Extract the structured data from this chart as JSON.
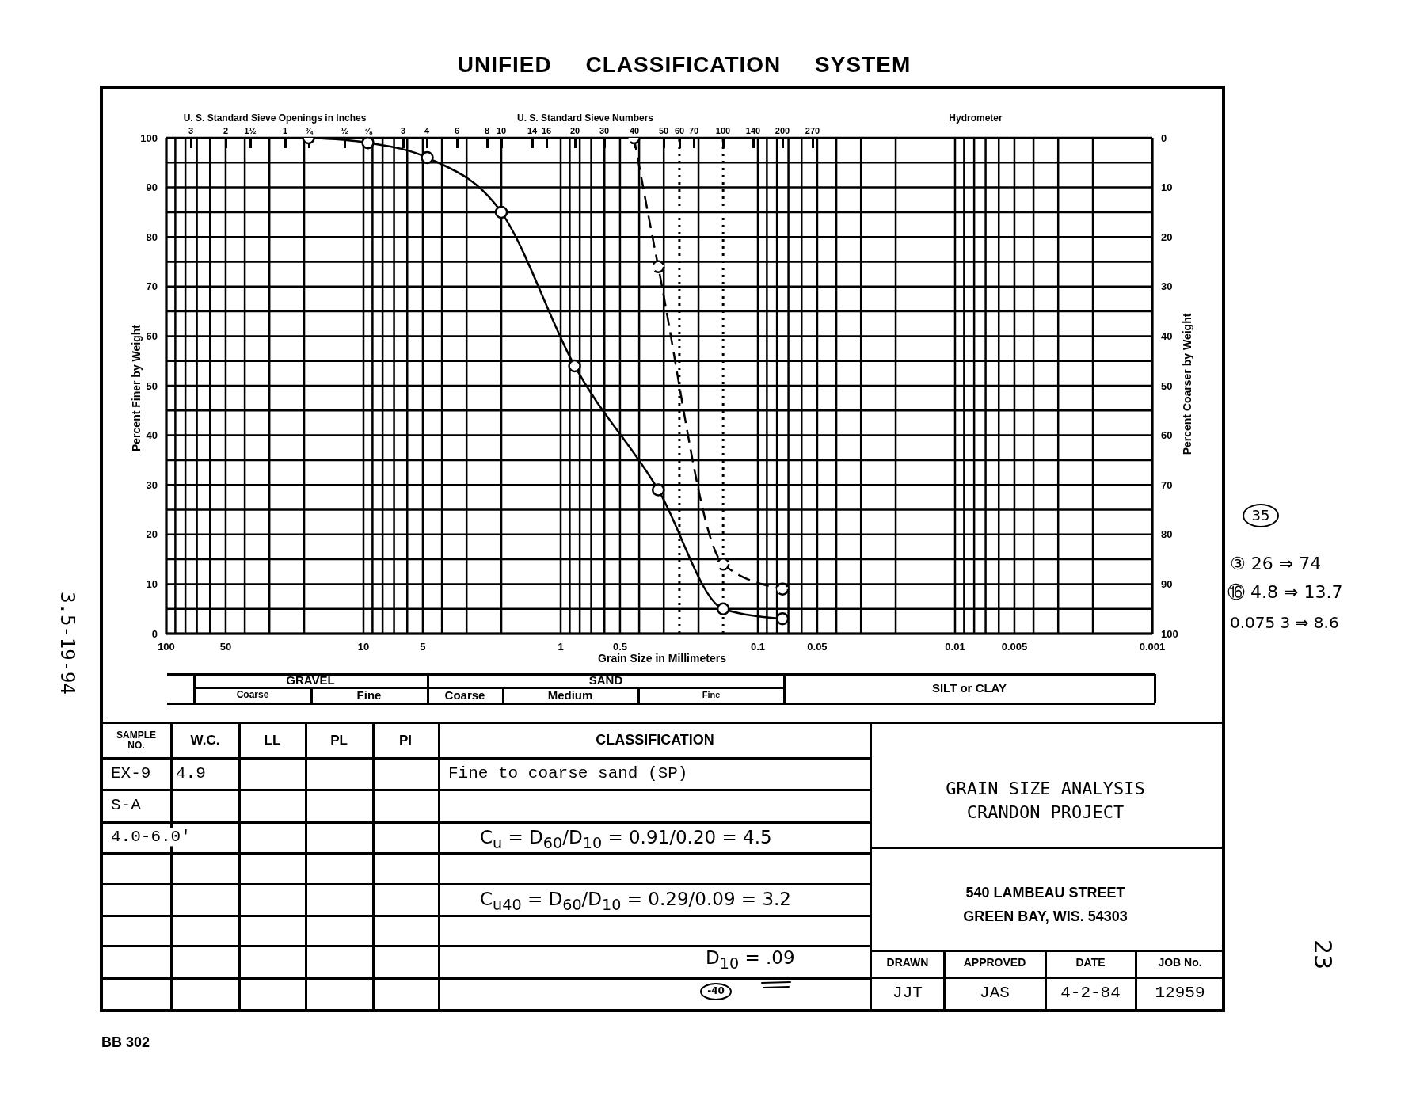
{
  "chart_data": {
    "type": "line",
    "title": "UNIFIED CLASSIFICATION SYSTEM",
    "xlabel": "Grain Size in Millimeters",
    "ylabel": "Percent Finer by Weight",
    "y2label": "Percent Coarser by Weight",
    "log": "x",
    "xlim": [
      100,
      0.001
    ],
    "xticks": [
      100,
      {
        "value": 90,
        "label": null
      },
      {
        "value": 80,
        "label": null
      },
      {
        "value": 70,
        "label": null
      },
      {
        "value": 60,
        "label": null
      },
      50,
      {
        "value": 40,
        "label": null
      },
      {
        "value": 30,
        "label": null
      },
      {
        "value": 20,
        "label": null
      },
      10,
      {
        "value": 9,
        "label": null
      },
      {
        "value": 8,
        "label": null
      },
      {
        "value": 7,
        "label": null
      },
      {
        "value": 6,
        "label": null
      },
      5,
      {
        "value": 4,
        "label": null
      },
      {
        "value": 3,
        "label": null
      },
      {
        "value": 2,
        "label": null
      },
      1,
      {
        "value": 0.9,
        "label": null
      },
      {
        "value": 0.8,
        "label": null
      },
      {
        "value": 0.7,
        "label": null
      },
      {
        "value": 0.6,
        "label": null
      },
      0.5,
      {
        "value": 0.4,
        "label": null
      },
      {
        "value": 0.3,
        "label": null
      },
      {
        "value": 0.2,
        "label": null
      },
      0.1,
      {
        "value": 0.09,
        "label": null
      },
      {
        "value": 0.08,
        "label": null
      },
      {
        "value": 0.07,
        "label": null
      },
      {
        "value": 0.06,
        "label": null
      },
      0.05,
      {
        "value": 0.04,
        "label": null
      },
      {
        "value": 0.03,
        "label": null
      },
      {
        "value": 0.02,
        "label": null
      },
      0.01,
      {
        "value": 0.009,
        "label": null
      },
      {
        "value": 0.008,
        "label": null
      },
      {
        "value": 0.007,
        "label": null
      },
      {
        "value": 0.006,
        "label": null
      },
      0.005,
      {
        "value": 0.004,
        "label": null
      },
      {
        "value": 0.003,
        "label": null
      },
      {
        "value": 0.002,
        "label": null
      },
      0.001
    ],
    "ylim": [
      0,
      100
    ],
    "yticks": [
      0,
      {
        "value": 5,
        "label": null
      },
      10,
      {
        "value": 15,
        "label": null
      },
      20,
      {
        "value": 25,
        "label": null
      },
      30,
      {
        "value": 35,
        "label": null
      },
      40,
      {
        "value": 45,
        "label": null
      },
      50,
      {
        "value": 55,
        "label": null
      },
      60,
      {
        "value": 65,
        "label": null
      },
      70,
      {
        "value": 75,
        "label": null
      },
      80,
      {
        "value": 85,
        "label": null
      },
      90,
      {
        "value": 95,
        "label": null
      },
      100
    ],
    "y2lim": [
      100,
      0
    ],
    "y2ticks": [
      0,
      10,
      20,
      30,
      40,
      50,
      60,
      70,
      80,
      90,
      100
    ],
    "grid": true,
    "marker": "circle",
    "series": [
      {
        "color": "#000000",
        "line_style": "solid",
        "x": [
          19,
          9.5,
          4.75,
          2,
          0.85,
          0.32,
          0.15,
          0.075
        ],
        "values": [
          100,
          99,
          96,
          85,
          54,
          29,
          5,
          3
        ]
      },
      {
        "color": "#000000",
        "line_style": "dashed",
        "x": [
          0.425,
          0.32,
          0.15,
          0.075
        ],
        "values": [
          100,
          74,
          14,
          9
        ]
      }
    ],
    "ref_lines": [
      {
        "axis": "x",
        "value": 0.25,
        "color": "#000000",
        "line_style": "dotted"
      },
      {
        "axis": "x",
        "value": 0.15,
        "color": "#000000",
        "line_style": "dotted"
      }
    ],
    "annotations": [
      "U. S. Standard Sieve Openings in Inches",
      "U. S. Standard Sieve Numbers",
      "Hydrometer",
      "GRAVEL",
      "Coarse",
      "Fine",
      "SAND",
      "Coarse",
      "Medium",
      "Fine",
      "SILT or CLAY",
      "SAMPLE NO.",
      "W.C.",
      "LL",
      "PL",
      "PI",
      "CLASSIFICATION",
      "EX-9",
      "4.9",
      "Fine to coarse sand (SP)",
      "S-A",
      "4.0-6.0'",
      "C$_{u}$ = D$_{60}$/D$_{10}$ = 0.91/0.20 = 4.5",
      "C$_{u40}$ = D$_{60}$/D$_{10}$ = 0.29/0.09 = 3.2",
      "D$_{10}$ = .09",
      "-40",
      "GRAIN SIZE ANALYSIS",
      "CRANDON PROJECT",
      "540 LAMBEAU STREET",
      "GREEN BAY, WIS. 54303",
      "DRAWN",
      "APPROVED",
      "DATE",
      "JOB No.",
      "JJT",
      "JAS",
      "4-2-84",
      "12959",
      "35",
      "③ 26 ⇒ 74",
      "⑯ 4.8 ⇒ 13.7",
      "0.075 3 ⇒ 8.6",
      "3.5-19-94",
      "23",
      "BB 302",
      "3",
      "2",
      "1½",
      "1",
      "¾",
      "½",
      "⅜",
      "3",
      "4",
      "6",
      "8",
      "10",
      "14",
      "16",
      "20",
      "30",
      "40",
      "50",
      "60",
      "70",
      "100",
      "140",
      "200",
      "270"
    ]
  }
}
